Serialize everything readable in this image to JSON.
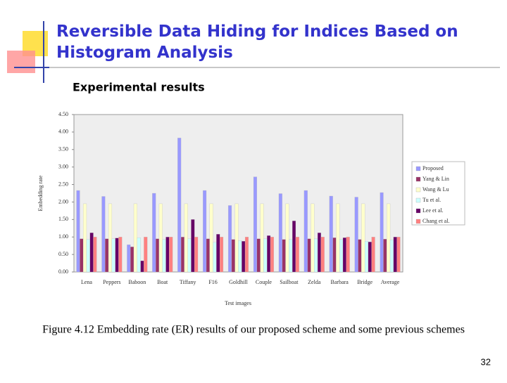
{
  "slide": {
    "title_lines": [
      "Reversible Data Hiding for Indices Based on",
      "Histogram Analysis"
    ],
    "subtitle": "Experimental results",
    "caption": "Figure 4.12 Embedding rate (ER) results of our proposed scheme and some previous schemes",
    "page_number": "32"
  },
  "chart_data": {
    "type": "bar",
    "x_label": "Test images",
    "y_label": "Embedding rate",
    "categories": [
      "Lena",
      "Peppers",
      "Baboon",
      "Boat",
      "Tiffany",
      "F16",
      "Goldhill",
      "Couple",
      "Sailboat",
      "Zelda",
      "Barbara",
      "Bridge",
      "Average"
    ],
    "series": [
      {
        "name": "Proposed",
        "color": "#9999ff",
        "values": [
          2.33,
          2.16,
          0.78,
          2.25,
          3.83,
          2.33,
          1.9,
          2.72,
          2.24,
          2.33,
          2.17,
          2.14,
          2.27
        ]
      },
      {
        "name": "Yang & Lin",
        "color": "#993366",
        "values": [
          0.95,
          0.95,
          0.72,
          0.95,
          1.0,
          0.95,
          0.93,
          0.95,
          0.93,
          0.95,
          0.98,
          0.93,
          0.94
        ]
      },
      {
        "name": "Wang & Lu",
        "color": "#ffffcc",
        "values": [
          1.95,
          1.95,
          1.95,
          1.95,
          1.95,
          1.95,
          1.95,
          1.95,
          1.95,
          1.95,
          1.95,
          1.95,
          1.95
        ]
      },
      {
        "name": "Tu et al.",
        "color": "#ccffff",
        "values": [
          0.93,
          0.95,
          0.98,
          0.93,
          0.95,
          0.85,
          0.9,
          0.95,
          0.93,
          0.95,
          0.93,
          0.88,
          0.92
        ]
      },
      {
        "name": "Lee et al.",
        "color": "#660066",
        "values": [
          1.12,
          0.97,
          0.32,
          1.0,
          1.5,
          1.08,
          0.88,
          1.04,
          1.46,
          1.12,
          0.98,
          0.86,
          1.0
        ]
      },
      {
        "name": "Chang et al.",
        "color": "#ff8080",
        "values": [
          1.0,
          1.0,
          1.0,
          1.0,
          1.0,
          1.0,
          1.0,
          1.0,
          1.0,
          1.0,
          1.0,
          1.0,
          1.0
        ]
      }
    ],
    "ylim": [
      0,
      4.5
    ],
    "yticks": [
      {
        "value": 0,
        "label": "0.00"
      },
      {
        "value": 0.5,
        "label": "0.50"
      },
      {
        "value": 1,
        "label": "1.00"
      },
      {
        "value": 1.5,
        "label": "1.50"
      },
      {
        "value": 2,
        "label": "2.00"
      },
      {
        "value": 2.5,
        "label": "2.50"
      },
      {
        "value": 3,
        "label": "3.00"
      },
      {
        "value": 3.5,
        "label": "3.50"
      },
      {
        "value": 4,
        "label": "4.00"
      },
      {
        "value": 4.5,
        "label": "4.50"
      }
    ],
    "legend": "right"
  }
}
